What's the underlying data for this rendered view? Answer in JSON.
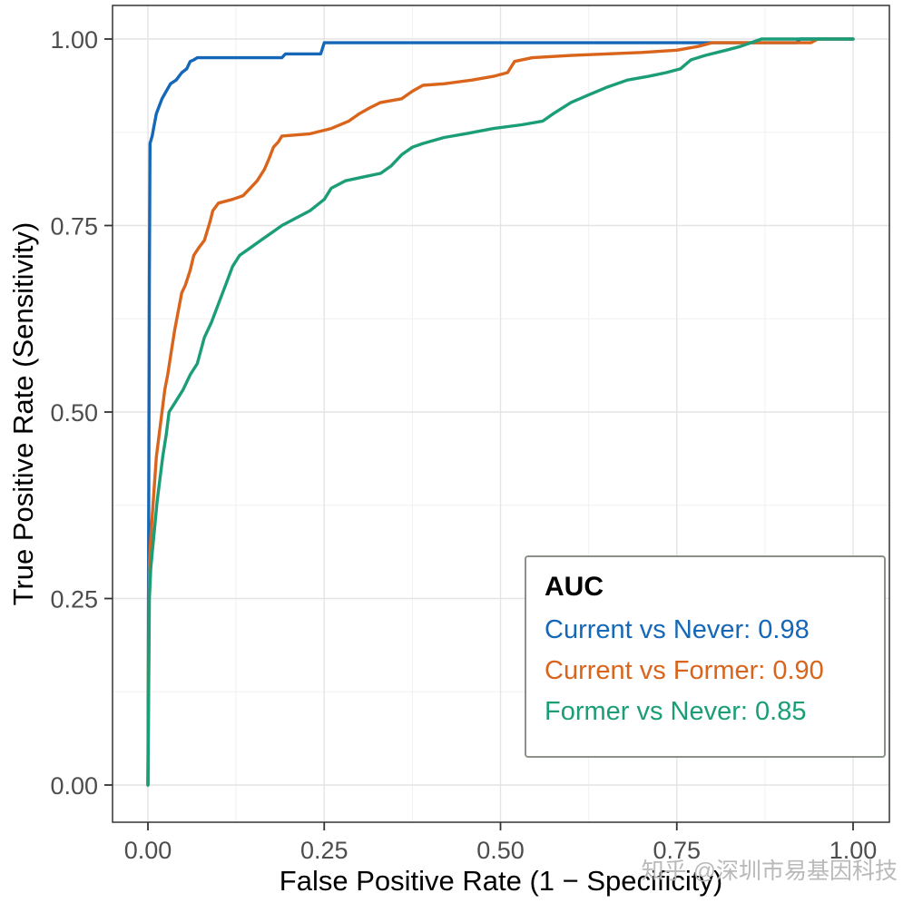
{
  "axes": {
    "x_label": "False Positive Rate (1 − Specificity)",
    "y_label": "True Positive Rate (Sensitivity)",
    "x_tick_labels": [
      "0.00",
      "0.25",
      "0.50",
      "0.75",
      "1.00"
    ],
    "y_tick_labels": [
      "0.00",
      "0.25",
      "0.50",
      "0.75",
      "1.00"
    ],
    "tick_values": [
      0,
      0.25,
      0.5,
      0.75,
      1
    ]
  },
  "legend": {
    "title": "AUC",
    "entries": [
      {
        "label": "Current vs Never: 0.98",
        "color": "#1568b8"
      },
      {
        "label": "Current vs Former: 0.90",
        "color": "#d9641c"
      },
      {
        "label": "Former vs Never: 0.85",
        "color": "#1b9e77"
      }
    ]
  },
  "watermark": "知乎 @深圳市易基因科技",
  "chart_data": {
    "type": "line",
    "title": "",
    "xlabel": "False Positive Rate (1 − Specificity)",
    "ylabel": "True Positive Rate (Sensitivity)",
    "xlim": [
      0,
      1
    ],
    "ylim": [
      0,
      1
    ],
    "grid": true,
    "legend_position": "inside bottom-right",
    "x_ticks": [
      0,
      0.25,
      0.5,
      0.75,
      1
    ],
    "y_ticks": [
      0,
      0.25,
      0.5,
      0.75,
      1
    ],
    "series": [
      {
        "name": "Current vs Never",
        "auc": 0.98,
        "color": "#1568b8",
        "points": [
          [
            0,
            0
          ],
          [
            0.002,
            0.68
          ],
          [
            0.003,
            0.86
          ],
          [
            0.006,
            0.87
          ],
          [
            0.008,
            0.88
          ],
          [
            0.012,
            0.9
          ],
          [
            0.016,
            0.91
          ],
          [
            0.02,
            0.92
          ],
          [
            0.026,
            0.93
          ],
          [
            0.032,
            0.94
          ],
          [
            0.04,
            0.945
          ],
          [
            0.048,
            0.955
          ],
          [
            0.055,
            0.96
          ],
          [
            0.06,
            0.97
          ],
          [
            0.065,
            0.972
          ],
          [
            0.07,
            0.975
          ],
          [
            0.19,
            0.975
          ],
          [
            0.195,
            0.98
          ],
          [
            0.245,
            0.98
          ],
          [
            0.25,
            0.995
          ],
          [
            0.92,
            0.995
          ],
          [
            0.925,
            1.0
          ],
          [
            1,
            1
          ]
        ]
      },
      {
        "name": "Current vs Former",
        "auc": 0.9,
        "color": "#d9641c",
        "points": [
          [
            0,
            0
          ],
          [
            0.002,
            0.3
          ],
          [
            0.004,
            0.33
          ],
          [
            0.006,
            0.36
          ],
          [
            0.009,
            0.4
          ],
          [
            0.012,
            0.44
          ],
          [
            0.016,
            0.47
          ],
          [
            0.02,
            0.5
          ],
          [
            0.024,
            0.53
          ],
          [
            0.028,
            0.55
          ],
          [
            0.033,
            0.58
          ],
          [
            0.038,
            0.61
          ],
          [
            0.042,
            0.63
          ],
          [
            0.048,
            0.66
          ],
          [
            0.053,
            0.67
          ],
          [
            0.06,
            0.69
          ],
          [
            0.065,
            0.71
          ],
          [
            0.072,
            0.72
          ],
          [
            0.08,
            0.73
          ],
          [
            0.088,
            0.755
          ],
          [
            0.092,
            0.77
          ],
          [
            0.1,
            0.78
          ],
          [
            0.12,
            0.785
          ],
          [
            0.135,
            0.79
          ],
          [
            0.145,
            0.8
          ],
          [
            0.155,
            0.81
          ],
          [
            0.165,
            0.825
          ],
          [
            0.172,
            0.84
          ],
          [
            0.178,
            0.855
          ],
          [
            0.185,
            0.862
          ],
          [
            0.19,
            0.87
          ],
          [
            0.23,
            0.873
          ],
          [
            0.26,
            0.88
          ],
          [
            0.285,
            0.89
          ],
          [
            0.3,
            0.9
          ],
          [
            0.315,
            0.908
          ],
          [
            0.33,
            0.915
          ],
          [
            0.36,
            0.92
          ],
          [
            0.375,
            0.93
          ],
          [
            0.39,
            0.938
          ],
          [
            0.42,
            0.94
          ],
          [
            0.46,
            0.945
          ],
          [
            0.49,
            0.95
          ],
          [
            0.51,
            0.955
          ],
          [
            0.52,
            0.97
          ],
          [
            0.545,
            0.975
          ],
          [
            0.6,
            0.978
          ],
          [
            0.65,
            0.98
          ],
          [
            0.7,
            0.982
          ],
          [
            0.75,
            0.985
          ],
          [
            0.78,
            0.99
          ],
          [
            0.8,
            0.995
          ],
          [
            0.94,
            0.995
          ],
          [
            0.95,
            1.0
          ],
          [
            1,
            1
          ]
        ]
      },
      {
        "name": "Former vs Never",
        "auc": 0.85,
        "color": "#1b9e77",
        "points": [
          [
            0,
            0
          ],
          [
            0.002,
            0.25
          ],
          [
            0.004,
            0.29
          ],
          [
            0.007,
            0.32
          ],
          [
            0.01,
            0.35
          ],
          [
            0.013,
            0.38
          ],
          [
            0.017,
            0.41
          ],
          [
            0.021,
            0.44
          ],
          [
            0.026,
            0.47
          ],
          [
            0.03,
            0.5
          ],
          [
            0.04,
            0.515
          ],
          [
            0.05,
            0.53
          ],
          [
            0.06,
            0.55
          ],
          [
            0.07,
            0.565
          ],
          [
            0.08,
            0.6
          ],
          [
            0.09,
            0.62
          ],
          [
            0.1,
            0.645
          ],
          [
            0.11,
            0.67
          ],
          [
            0.12,
            0.695
          ],
          [
            0.13,
            0.71
          ],
          [
            0.145,
            0.72
          ],
          [
            0.16,
            0.73
          ],
          [
            0.175,
            0.74
          ],
          [
            0.19,
            0.75
          ],
          [
            0.21,
            0.76
          ],
          [
            0.23,
            0.77
          ],
          [
            0.25,
            0.785
          ],
          [
            0.26,
            0.8
          ],
          [
            0.28,
            0.81
          ],
          [
            0.305,
            0.815
          ],
          [
            0.33,
            0.82
          ],
          [
            0.345,
            0.83
          ],
          [
            0.36,
            0.845
          ],
          [
            0.375,
            0.855
          ],
          [
            0.39,
            0.86
          ],
          [
            0.42,
            0.868
          ],
          [
            0.45,
            0.873
          ],
          [
            0.49,
            0.88
          ],
          [
            0.53,
            0.885
          ],
          [
            0.56,
            0.89
          ],
          [
            0.575,
            0.9
          ],
          [
            0.6,
            0.915
          ],
          [
            0.625,
            0.925
          ],
          [
            0.65,
            0.935
          ],
          [
            0.68,
            0.945
          ],
          [
            0.71,
            0.95
          ],
          [
            0.735,
            0.955
          ],
          [
            0.755,
            0.96
          ],
          [
            0.77,
            0.972
          ],
          [
            0.79,
            0.978
          ],
          [
            0.82,
            0.985
          ],
          [
            0.84,
            0.99
          ],
          [
            0.855,
            0.995
          ],
          [
            0.87,
            1.0
          ],
          [
            1,
            1
          ]
        ]
      }
    ]
  }
}
